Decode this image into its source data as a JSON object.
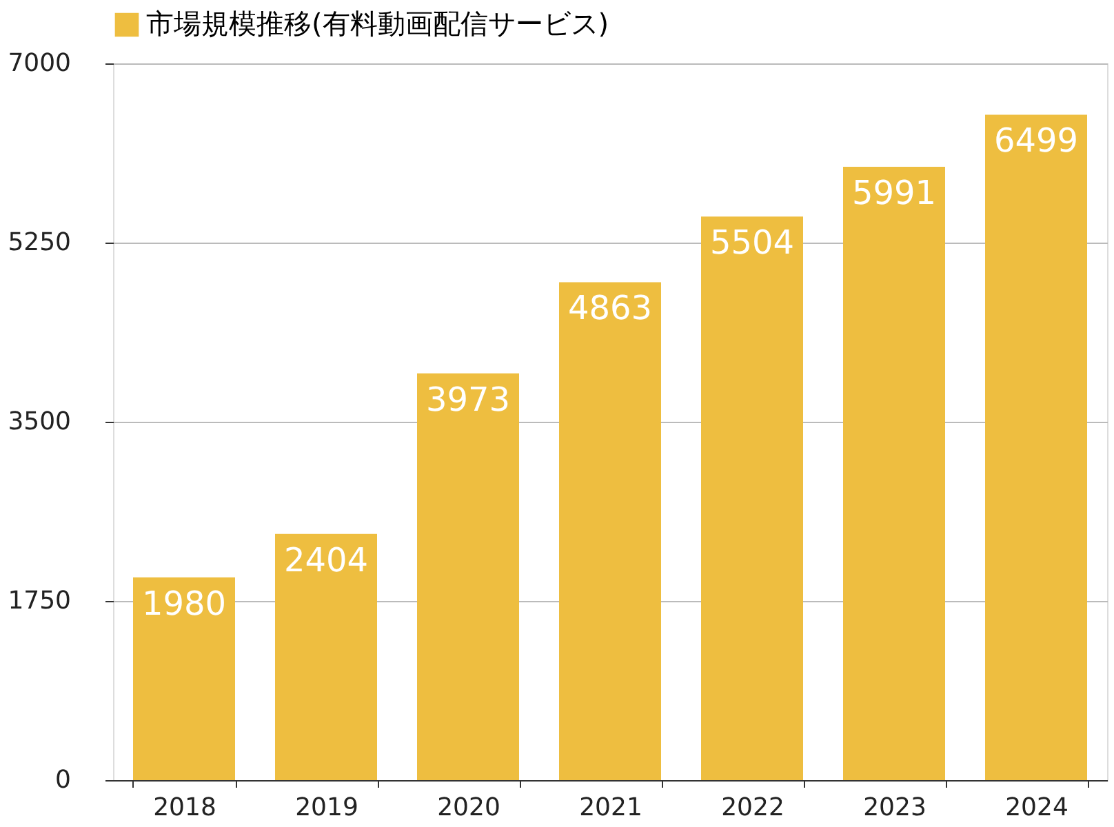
{
  "chart_data": {
    "type": "bar",
    "categories": [
      "2018",
      "2019",
      "2020",
      "2021",
      "2022",
      "2023",
      "2024"
    ],
    "series": [
      {
        "name": "市場規模推移(有料動画配信サービス)",
        "color": "#eebe40",
        "values": [
          1980,
          2404,
          3973,
          4863,
          5504,
          5991,
          6499
        ]
      }
    ],
    "ylim": [
      0,
      7000
    ],
    "yticks": [
      0,
      1750,
      3500,
      5250,
      7000
    ],
    "grid": "y",
    "legend": "top",
    "data_labels": true
  }
}
